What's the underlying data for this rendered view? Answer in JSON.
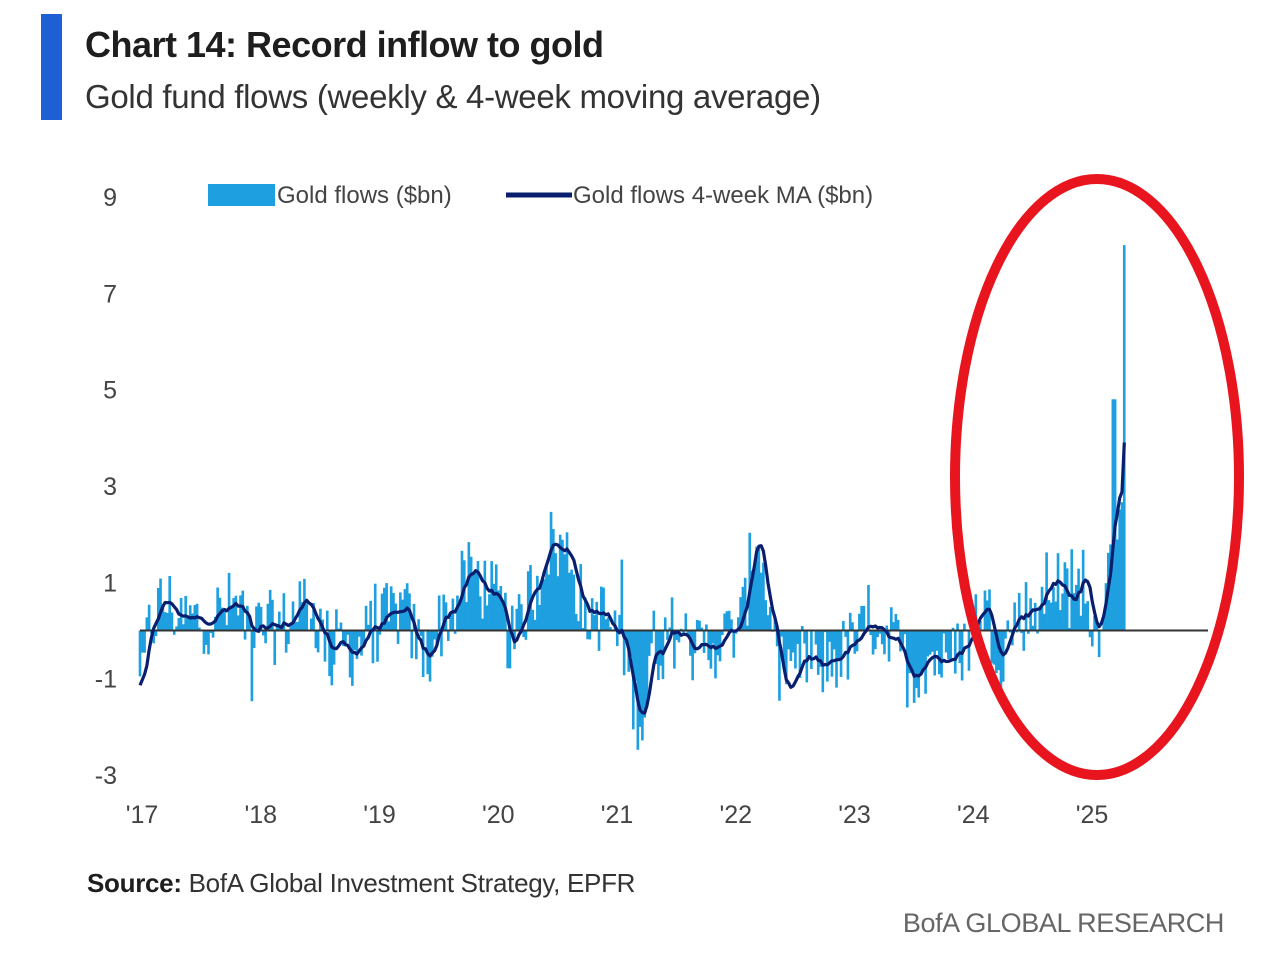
{
  "header": {
    "title": "Chart 14: Record inflow to gold",
    "subtitle": "Gold fund flows (weekly & 4-week moving average)"
  },
  "footer": {
    "source_label": "Source:",
    "source_text": "BofA Global Investment Strategy, EPFR",
    "brand": "BofA GLOBAL RESEARCH"
  },
  "colors": {
    "accent": "#1f5fd6",
    "bars": "#1ea0e0",
    "ma_line": "#0a1e6e",
    "annotation": "#e8141e"
  },
  "chart_data": {
    "type": "bar",
    "title": "Chart 14: Record inflow to gold",
    "subtitle": "Gold fund flows (weekly & 4-week moving average)",
    "xlabel": "",
    "ylabel": "",
    "ylim": [
      -3,
      9
    ],
    "yticks": [
      "9",
      "7",
      "5",
      "3",
      "1",
      "-1",
      "-3"
    ],
    "ytick_values": [
      9,
      7,
      5,
      3,
      1,
      -1,
      -3
    ],
    "xticks": [
      "'17",
      "'18",
      "'19",
      "'20",
      "'21",
      "'22",
      "'23",
      "'24",
      "'25"
    ],
    "xtick_years": [
      2017,
      2018,
      2019,
      2020,
      2021,
      2022,
      2023,
      2024,
      2025
    ],
    "x_range_years": [
      2017.0,
      2026.0
    ],
    "legend": {
      "position": "top",
      "entries": [
        {
          "label": "Gold flows ($bn)",
          "kind": "bar"
        },
        {
          "label": "Gold flows 4-week MA ($bn)",
          "kind": "line"
        }
      ]
    },
    "annotation": {
      "kind": "ellipse",
      "note": "highlights 2024-2025 inflow surge",
      "from_year": 2024.3,
      "to_year": 2026.2
    },
    "anchors_year": [
      2017.0,
      2017.1,
      2017.2,
      2017.4,
      2017.6,
      2017.8,
      2018.0,
      2018.2,
      2018.4,
      2018.6,
      2018.8,
      2019.0,
      2019.2,
      2019.4,
      2019.6,
      2019.8,
      2020.0,
      2020.15,
      2020.3,
      2020.45,
      2020.6,
      2020.75,
      2020.9,
      2021.05,
      2021.2,
      2021.35,
      2021.5,
      2021.7,
      2021.9,
      2022.05,
      2022.2,
      2022.3,
      2022.45,
      2022.6,
      2022.75,
      2022.9,
      2023.05,
      2023.2,
      2023.35,
      2023.5,
      2023.65,
      2023.8,
      2023.95,
      2024.1,
      2024.25,
      2024.4,
      2024.55,
      2024.7,
      2024.85,
      2024.95,
      2025.05,
      2025.15,
      2025.22,
      2025.3
    ],
    "anchors_ma_bn": [
      -1.2,
      0.2,
      0.6,
      0.2,
      0.3,
      0.5,
      0.0,
      0.1,
      0.6,
      -0.3,
      -0.4,
      0.1,
      0.4,
      -0.5,
      0.4,
      1.2,
      0.6,
      -0.3,
      0.8,
      1.8,
      1.6,
      0.5,
      0.3,
      -0.2,
      -1.7,
      -0.4,
      0.0,
      -0.4,
      -0.2,
      0.1,
      2.0,
      0.4,
      -1.4,
      -0.6,
      -0.7,
      -0.5,
      -0.2,
      0.2,
      -0.3,
      -0.9,
      -0.5,
      -0.7,
      -0.3,
      0.5,
      -0.4,
      0.3,
      0.5,
      1.1,
      0.5,
      1.2,
      0.0,
      1.2,
      2.5,
      3.9
    ],
    "series": [
      {
        "name": "Gold flows ($bn)",
        "type": "bar",
        "peak_bn": 8.0,
        "peak_year": 2025.3
      },
      {
        "name": "Gold flows 4-week MA ($bn)",
        "type": "line",
        "last_bn": 3.9
      }
    ]
  }
}
